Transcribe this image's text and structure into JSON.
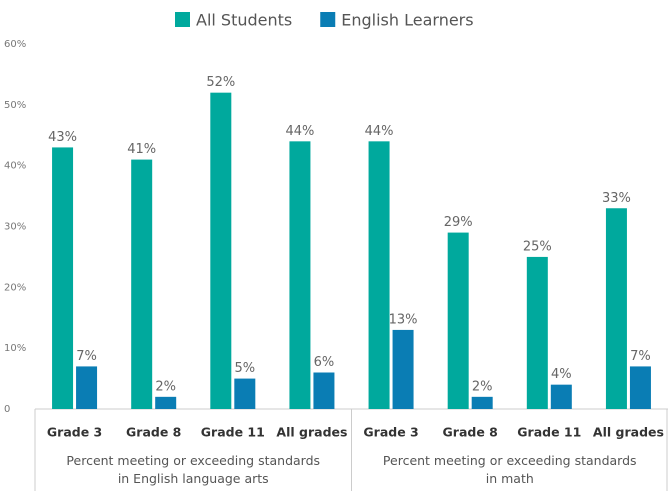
{
  "chart_data": {
    "type": "bar",
    "groups": [
      {
        "label": "Percent meeting or exceeding standards in English language arts",
        "categories": [
          "Grade 3",
          "Grade 8",
          "Grade 11",
          "All grades"
        ]
      },
      {
        "label": "Percent meeting or exceeding standards in math",
        "categories": [
          "Grade 3",
          "Grade 8",
          "Grade 11",
          "All grades"
        ]
      }
    ],
    "series": [
      {
        "name": "All Students",
        "color": "#00a99d",
        "values": [
          43,
          41,
          52,
          44,
          44,
          29,
          25,
          33
        ],
        "value_labels": [
          "43%",
          "41%",
          "52%",
          "44%",
          "44%",
          "29%",
          "25%",
          "33%"
        ]
      },
      {
        "name": "English Learners",
        "color": "#0a7db4",
        "values": [
          7,
          2,
          5,
          6,
          13,
          2,
          4,
          7
        ],
        "value_labels": [
          "7%",
          "2%",
          "5%",
          "6%",
          "13%",
          "2%",
          "4%",
          "7%"
        ]
      }
    ],
    "ylim": [
      0,
      60
    ],
    "yticks": [
      0,
      {
        "value": 10,
        "label": "10%"
      },
      {
        "value": 20,
        "label": "20%"
      },
      {
        "value": 30,
        "label": "30%"
      },
      {
        "value": 40,
        "label": "40%"
      },
      {
        "value": 50,
        "label": "50%"
      },
      {
        "value": 60,
        "label": "60%"
      }
    ],
    "legend": "top"
  }
}
